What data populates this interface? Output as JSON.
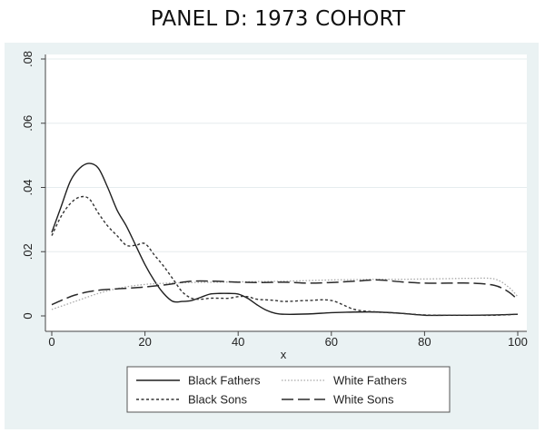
{
  "title": "PANEL D: 1973 COHORT",
  "chart_data": {
    "type": "line",
    "title": "PANEL D: 1973 COHORT",
    "xlabel": "x",
    "ylabel": "",
    "xlim": [
      0,
      100
    ],
    "ylim": [
      0,
      0.08
    ],
    "x_ticks": [
      0,
      20,
      40,
      60,
      80,
      100
    ],
    "x_tick_labels": [
      "0",
      "20",
      "40",
      "60",
      "80",
      "100"
    ],
    "y_ticks": [
      0,
      0.02,
      0.04,
      0.06,
      0.08
    ],
    "y_tick_labels": [
      "0",
      ".02",
      ".04",
      ".06",
      ".08"
    ],
    "grid": true,
    "legend_position": "bottom",
    "colors": {
      "background": "#eaf2f3",
      "plot": "#ffffff",
      "grid": "#e6ecee",
      "axis": "#444444"
    },
    "series": [
      {
        "name": "Black Fathers",
        "style": "solid",
        "color": "#1f1f1f",
        "x": [
          0,
          2,
          4,
          6,
          8,
          10,
          12,
          14,
          16,
          18,
          20,
          22,
          24,
          26,
          28,
          30,
          32,
          34,
          36,
          38,
          40,
          42,
          44,
          46,
          48,
          50,
          55,
          60,
          65,
          70,
          75,
          80,
          85,
          90,
          95,
          100
        ],
        "y": [
          0.026,
          0.034,
          0.042,
          0.046,
          0.0475,
          0.046,
          0.04,
          0.033,
          0.028,
          0.022,
          0.016,
          0.011,
          0.007,
          0.0045,
          0.0045,
          0.0048,
          0.0058,
          0.0068,
          0.007,
          0.007,
          0.0068,
          0.0055,
          0.0035,
          0.0018,
          0.0008,
          0.0005,
          0.0006,
          0.001,
          0.0012,
          0.0012,
          0.0008,
          0.0002,
          0.0002,
          0.0002,
          0.0003,
          0.0005
        ]
      },
      {
        "name": "White Fathers",
        "style": "dotted",
        "color": "#a8a8a8",
        "x": [
          0,
          5,
          10,
          15,
          20,
          25,
          30,
          35,
          40,
          45,
          50,
          55,
          60,
          65,
          70,
          75,
          80,
          85,
          90,
          95,
          98,
          100
        ],
        "y": [
          0.002,
          0.0045,
          0.007,
          0.0088,
          0.0098,
          0.0102,
          0.0104,
          0.0105,
          0.0106,
          0.0107,
          0.0108,
          0.011,
          0.0112,
          0.0113,
          0.0114,
          0.0114,
          0.0115,
          0.0116,
          0.0117,
          0.0115,
          0.009,
          0.006
        ]
      },
      {
        "name": "Black Sons",
        "style": "dashed",
        "color": "#333333",
        "x": [
          0,
          2,
          4,
          6,
          8,
          10,
          12,
          14,
          16,
          18,
          20,
          22,
          24,
          26,
          28,
          30,
          32,
          34,
          36,
          38,
          40,
          42,
          44,
          46,
          48,
          50,
          55,
          60,
          65,
          70,
          75,
          80,
          85,
          90,
          95,
          100
        ],
        "y": [
          0.025,
          0.031,
          0.035,
          0.037,
          0.0365,
          0.032,
          0.028,
          0.025,
          0.022,
          0.022,
          0.0225,
          0.019,
          0.0155,
          0.0115,
          0.0075,
          0.0055,
          0.0052,
          0.0055,
          0.0055,
          0.0055,
          0.006,
          0.006,
          0.0052,
          0.005,
          0.0048,
          0.0045,
          0.0048,
          0.0048,
          0.002,
          0.0012,
          0.0008,
          0.0003,
          0.0002,
          0.0002,
          0.0002,
          0.0005
        ]
      },
      {
        "name": "White Sons",
        "style": "longdash",
        "color": "#2a2a2a",
        "x": [
          0,
          5,
          10,
          15,
          20,
          25,
          30,
          35,
          40,
          45,
          50,
          55,
          60,
          65,
          70,
          75,
          80,
          85,
          90,
          95,
          98,
          100
        ],
        "y": [
          0.0035,
          0.0065,
          0.008,
          0.0085,
          0.009,
          0.0098,
          0.0108,
          0.0108,
          0.0105,
          0.0104,
          0.0105,
          0.0102,
          0.0104,
          0.0108,
          0.0112,
          0.0106,
          0.0102,
          0.0102,
          0.0102,
          0.0095,
          0.0075,
          0.005
        ]
      }
    ]
  }
}
